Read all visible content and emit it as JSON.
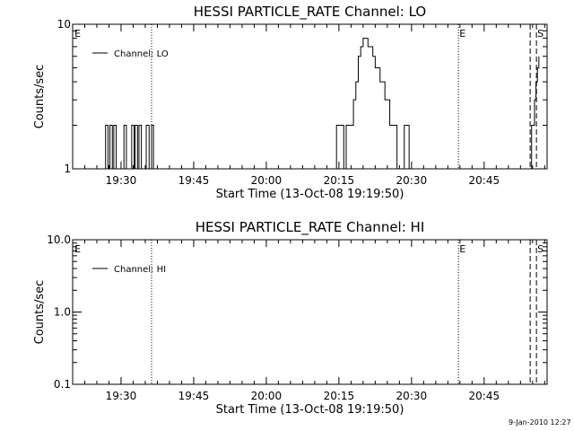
{
  "timestamp": "9-Jan-2010 12:27",
  "chart_data": [
    {
      "type": "line",
      "title": "HESSI PARTICLE_RATE Channel: LO",
      "xlabel": "Start Time (13-Oct-08 19:19:50)",
      "ylabel": "Counts/sec",
      "y_scale": "log",
      "xlim_min": [
        0,
        98
      ],
      "ylim": [
        1,
        10
      ],
      "x_ticks": [
        10,
        25,
        40,
        55,
        70,
        85
      ],
      "x_tick_labels": [
        "19:30",
        "19:45",
        "20:00",
        "20:15",
        "20:30",
        "20:45"
      ],
      "y_ticks": [
        1,
        10
      ],
      "y_tick_labels": [
        "1",
        "10"
      ],
      "legend_label": "Channel: LO",
      "legend_position": "top-left",
      "markers": [
        {
          "label": "E",
          "x_min": 0.2,
          "style": "none"
        },
        {
          "label": "",
          "x_min": 16.3,
          "style": "dotted"
        },
        {
          "label": "E",
          "x_min": 79.7,
          "style": "dotted"
        },
        {
          "label": "",
          "x_min": 94.5,
          "style": "dashed"
        },
        {
          "label": "S",
          "x_min": 95.8,
          "style": "dashed"
        }
      ],
      "series": [
        {
          "x_min": [
            6.6,
            6.8,
            7.1,
            7.3,
            7.4,
            7.7,
            7.9,
            8.2,
            8.4,
            8.5,
            8.8,
            9.0,
            9.1,
            10.6,
            10.8,
            11.1,
            11.2,
            12.2,
            12.4,
            12.7,
            12.9,
            13.2,
            13.4,
            13.7,
            13.9,
            14.2,
            14.4,
            15.2,
            15.5,
            15.8,
            16.0,
            16.3,
            16.5,
            16.7,
            16.8,
            54.5,
            55.0,
            55.5,
            56.0,
            56.5,
            57.0,
            57.5,
            58.0,
            58.5,
            59.0,
            59.5,
            60.0,
            60.5,
            61.0,
            61.5,
            62.0,
            62.5,
            63.0,
            63.5,
            64.0,
            64.5,
            65.0,
            65.5,
            66.0,
            66.5,
            67.0,
            67.5,
            68.0,
            68.5,
            69.0,
            69.5,
            70.0,
            70.5,
            71.0,
            94.4,
            94.8,
            95.1,
            95.4,
            95.7,
            96.0,
            96.3
          ],
          "y": [
            1,
            2,
            2,
            1,
            1,
            2,
            2,
            1,
            1,
            2,
            2,
            1,
            1,
            2,
            2,
            1,
            1,
            2,
            2,
            1,
            2,
            2,
            1,
            2,
            2,
            1,
            1,
            2,
            2,
            1,
            1,
            2,
            2,
            1,
            1,
            2,
            2,
            2,
            1,
            2,
            2,
            2,
            3,
            4,
            6,
            7,
            8,
            8,
            7,
            7,
            6,
            5,
            5,
            4,
            4,
            3,
            3,
            2,
            2,
            2,
            1,
            1,
            1,
            2,
            2,
            1,
            1,
            1,
            1,
            1,
            2,
            2,
            3,
            4,
            5,
            6
          ]
        }
      ]
    },
    {
      "type": "line",
      "title": "HESSI PARTICLE_RATE Channel: HI",
      "xlabel": "Start Time (13-Oct-08 19:19:50)",
      "ylabel": "Counts/sec",
      "y_scale": "log",
      "xlim_min": [
        0,
        98
      ],
      "ylim": [
        0.1,
        10
      ],
      "x_ticks": [
        10,
        25,
        40,
        55,
        70,
        85
      ],
      "x_tick_labels": [
        "19:30",
        "19:45",
        "20:00",
        "20:15",
        "20:30",
        "20:45"
      ],
      "y_ticks": [
        0.1,
        1,
        10
      ],
      "y_tick_labels": [
        "0.1",
        "1.0",
        "10.0"
      ],
      "legend_label": "Channel: HI",
      "legend_position": "top-left",
      "markers": [
        {
          "label": "E",
          "x_min": 0.2,
          "style": "none"
        },
        {
          "label": "",
          "x_min": 16.3,
          "style": "dotted"
        },
        {
          "label": "E",
          "x_min": 79.7,
          "style": "dotted"
        },
        {
          "label": "",
          "x_min": 94.5,
          "style": "dashed"
        },
        {
          "label": "S",
          "x_min": 95.8,
          "style": "dashed"
        }
      ],
      "series": []
    }
  ]
}
